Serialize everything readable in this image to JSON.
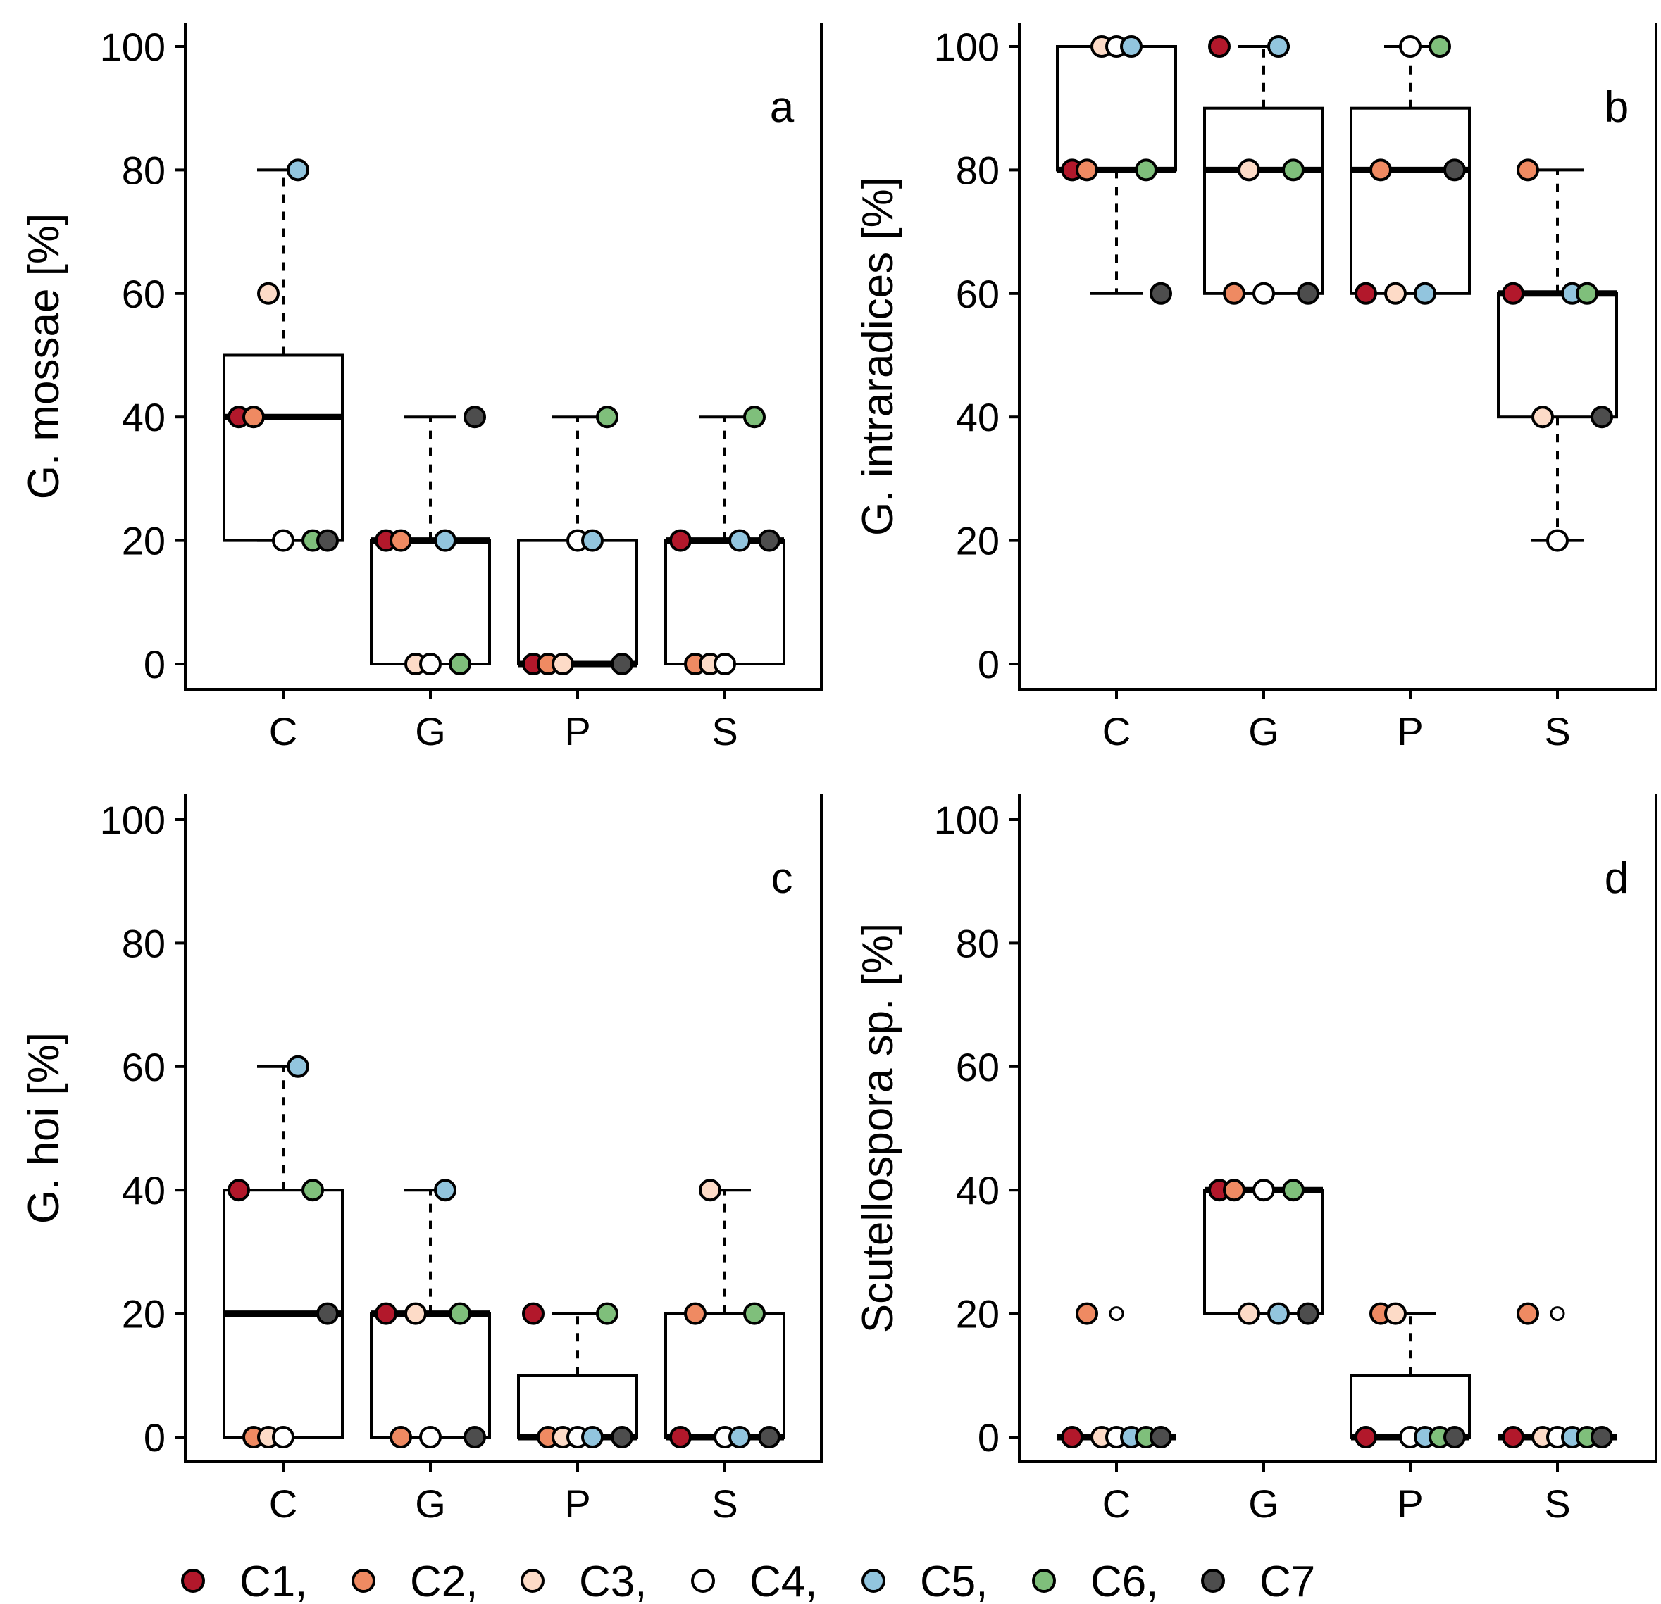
{
  "chart_data": [
    {
      "type": "box",
      "panel": "a",
      "ylabel": "G. mossae [%]",
      "ylim": [
        0,
        100
      ],
      "yticks": [
        0,
        20,
        40,
        60,
        80,
        100
      ],
      "categories": [
        "C",
        "G",
        "P",
        "S"
      ],
      "box_stats": [
        [
          20,
          20,
          40,
          50,
          80
        ],
        [
          0,
          0,
          20,
          20,
          40
        ],
        [
          0,
          0,
          0,
          20,
          40
        ],
        [
          0,
          0,
          20,
          20,
          40
        ]
      ],
      "outliers": [
        [],
        [],
        [],
        []
      ],
      "points": [
        [
          40,
          40,
          60,
          20,
          80,
          20,
          20
        ],
        [
          20,
          20,
          0,
          0,
          20,
          0,
          40
        ],
        [
          0,
          0,
          0,
          20,
          20,
          40,
          0
        ],
        [
          20,
          0,
          0,
          0,
          20,
          40,
          20
        ]
      ]
    },
    {
      "type": "box",
      "panel": "b",
      "ylabel": "G. intraradices [%]",
      "ylim": [
        0,
        100
      ],
      "yticks": [
        0,
        20,
        40,
        60,
        80,
        100
      ],
      "categories": [
        "C",
        "G",
        "P",
        "S"
      ],
      "box_stats": [
        [
          60,
          80,
          80,
          100,
          100
        ],
        [
          60,
          60,
          80,
          90,
          100
        ],
        [
          60,
          60,
          80,
          90,
          100
        ],
        [
          20,
          40,
          60,
          60,
          80
        ]
      ],
      "outliers": [
        [],
        [],
        [],
        []
      ],
      "points": [
        [
          80,
          80,
          100,
          100,
          100,
          80,
          60
        ],
        [
          100,
          60,
          80,
          60,
          100,
          80,
          60
        ],
        [
          60,
          80,
          60,
          100,
          60,
          100,
          80
        ],
        [
          60,
          80,
          40,
          20,
          60,
          60,
          40
        ]
      ]
    },
    {
      "type": "box",
      "panel": "c",
      "ylabel": "G. hoi [%]",
      "ylim": [
        0,
        100
      ],
      "yticks": [
        0,
        20,
        40,
        60,
        80,
        100
      ],
      "categories": [
        "C",
        "G",
        "P",
        "S"
      ],
      "box_stats": [
        [
          0,
          0,
          20,
          40,
          60
        ],
        [
          0,
          0,
          20,
          20,
          40
        ],
        [
          0,
          0,
          0,
          10,
          20
        ],
        [
          0,
          0,
          0,
          20,
          40
        ]
      ],
      "outliers": [
        [],
        [],
        [],
        []
      ],
      "points": [
        [
          40,
          0,
          0,
          0,
          60,
          40,
          20
        ],
        [
          20,
          0,
          20,
          0,
          40,
          20,
          0
        ],
        [
          20,
          0,
          0,
          0,
          0,
          20,
          0
        ],
        [
          0,
          20,
          40,
          0,
          0,
          20,
          0
        ]
      ]
    },
    {
      "type": "box",
      "panel": "d",
      "ylabel": "Scutellospora sp. [%]",
      "ylim": [
        0,
        100
      ],
      "yticks": [
        0,
        20,
        40,
        60,
        80,
        100
      ],
      "categories": [
        "C",
        "G",
        "P",
        "S"
      ],
      "box_stats": [
        [
          0,
          0,
          0,
          0,
          0
        ],
        [
          20,
          20,
          40,
          40,
          40
        ],
        [
          0,
          0,
          0,
          10,
          20
        ],
        [
          0,
          0,
          0,
          0,
          0
        ]
      ],
      "outliers": [
        [
          20
        ],
        [],
        [],
        [
          20
        ]
      ],
      "points": [
        [
          0,
          20,
          0,
          0,
          0,
          0,
          0
        ],
        [
          40,
          40,
          20,
          40,
          20,
          40,
          20
        ],
        [
          0,
          20,
          20,
          0,
          0,
          0,
          0
        ],
        [
          0,
          20,
          0,
          0,
          0,
          0,
          0
        ]
      ]
    }
  ],
  "legend": {
    "labels": [
      "C1,",
      "C2,",
      "C3,",
      "C4,",
      "C5,",
      "C6,",
      "C7"
    ],
    "colors": [
      "#b2182b",
      "#ef8a62",
      "#fddbc7",
      "#ffffff",
      "#92c5de",
      "#7fbf7b",
      "#4d4d4d"
    ]
  }
}
